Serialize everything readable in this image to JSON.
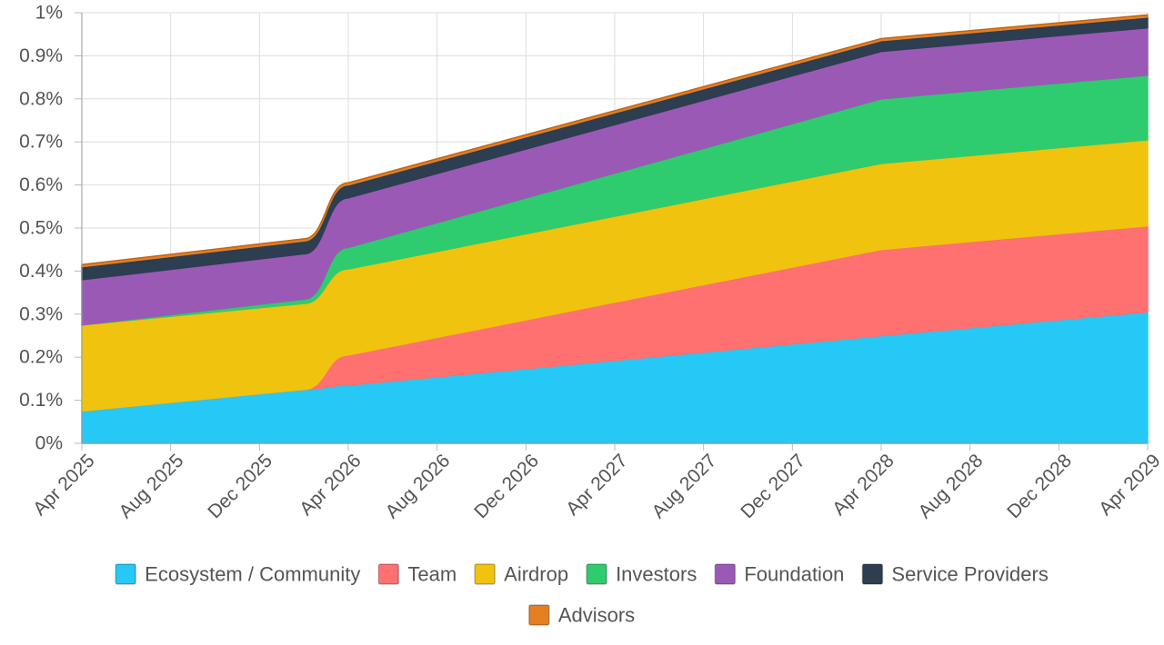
{
  "chart_data": {
    "type": "area",
    "stacked": true,
    "title": "",
    "xlabel": "",
    "ylabel": "",
    "ylim": [
      0,
      1
    ],
    "y_unit": "%",
    "y_ticks": [
      "0%",
      "0.1%",
      "0.2%",
      "0.3%",
      "0.4%",
      "0.5%",
      "0.6%",
      "0.7%",
      "0.8%",
      "0.9%",
      "1%"
    ],
    "x_ticks": [
      "Apr 2025",
      "Aug 2025",
      "Dec 2025",
      "Apr 2026",
      "Aug 2026",
      "Dec 2026",
      "Apr 2027",
      "Aug 2027",
      "Dec 2027",
      "Apr 2028",
      "Aug 2028",
      "Dec 2028",
      "Apr 2029"
    ],
    "x": [
      "2025-04",
      "2026-02",
      "2026-04",
      "2028-04",
      "2029-04"
    ],
    "grid": true,
    "legend_position": "bottom",
    "series": [
      {
        "name": "Ecosystem / Community",
        "color": "#26c9f5",
        "values": [
          0.075,
          0.125,
          0.135,
          0.25,
          0.305
        ]
      },
      {
        "name": "Team",
        "color": "#ff7070",
        "values": [
          0,
          0,
          0.07,
          0.2,
          0.2
        ]
      },
      {
        "name": "Airdrop",
        "color": "#f0c30e",
        "values": [
          0.2,
          0.2,
          0.2,
          0.2,
          0.2
        ]
      },
      {
        "name": "Investors",
        "color": "#2ecc6e",
        "values": [
          0,
          0.01,
          0.05,
          0.15,
          0.15
        ]
      },
      {
        "name": "Foundation",
        "color": "#9b59b6",
        "values": [
          0.105,
          0.105,
          0.115,
          0.11,
          0.11
        ]
      },
      {
        "name": "Service Providers",
        "color": "#2c3e50",
        "values": [
          0.03,
          0.03,
          0.03,
          0.025,
          0.025
        ]
      },
      {
        "name": "Advisors",
        "color": "#e67e22",
        "values": [
          0.005,
          0.005,
          0.005,
          0.005,
          0.005
        ]
      }
    ]
  }
}
